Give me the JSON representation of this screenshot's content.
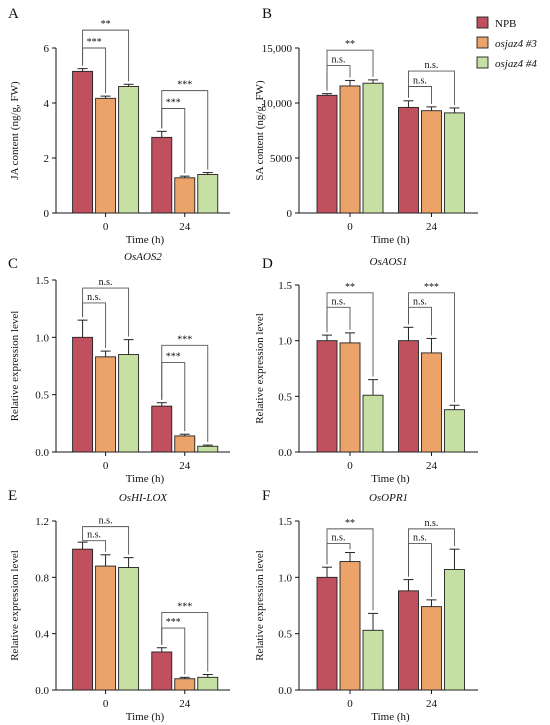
{
  "legend": [
    {
      "name": "NPB",
      "italic": false
    },
    {
      "name": "osjaz4 #3",
      "italic": true
    },
    {
      "name": "osjaz4 #4",
      "italic": true
    }
  ],
  "colors": {
    "NPB": "#c0505e",
    "osjaz4_3": "#eca36a",
    "osjaz4_4": "#c5e0a2",
    "stroke": "#222222"
  },
  "chart_data": [
    {
      "panel": "A",
      "type": "bar",
      "title": "",
      "xlabel": "Time (h)",
      "ylabel": "JA content (ng/g, FW)",
      "categories": [
        "0",
        "24"
      ],
      "ylim": [
        0,
        6
      ],
      "yticks": [
        0,
        2,
        4,
        6
      ],
      "ytick_labels": [
        "0",
        "2",
        "4",
        "6"
      ],
      "series": [
        {
          "name": "NPB",
          "values": [
            5.15,
            2.75
          ],
          "errors": [
            0.1,
            0.22
          ]
        },
        {
          "name": "osjaz4 #3",
          "values": [
            4.17,
            1.28
          ],
          "errors": [
            0.08,
            0.06
          ]
        },
        {
          "name": "osjaz4 #4",
          "values": [
            4.6,
            1.4
          ],
          "errors": [
            0.08,
            0.07
          ]
        }
      ],
      "brackets": [
        {
          "group": 0,
          "from": 0,
          "to": 2,
          "y": 6.65,
          "label": "**"
        },
        {
          "group": 0,
          "from": 0,
          "to": 1,
          "y": 6.0,
          "label": "***"
        },
        {
          "group": 1,
          "from": 0,
          "to": 2,
          "y": 4.45,
          "label": "***"
        },
        {
          "group": 1,
          "from": 0,
          "to": 1,
          "y": 3.8,
          "label": "***"
        }
      ]
    },
    {
      "panel": "B",
      "type": "bar",
      "title": "",
      "xlabel": "Time (h)",
      "ylabel": "SA content (ng/g, FW)",
      "categories": [
        "0",
        "24"
      ],
      "ylim": [
        0,
        15000
      ],
      "yticks": [
        0,
        5000,
        10000,
        15000
      ],
      "ytick_labels": [
        "0",
        "5000",
        "10,000",
        "15,000"
      ],
      "series": [
        {
          "name": "NPB",
          "values": [
            10700,
            9600
          ],
          "errors": [
            150,
            600
          ]
        },
        {
          "name": "osjaz4 #3",
          "values": [
            11550,
            9300
          ],
          "errors": [
            500,
            350
          ]
        },
        {
          "name": "osjaz4 #4",
          "values": [
            11800,
            9100
          ],
          "errors": [
            300,
            450
          ]
        }
      ],
      "brackets": [
        {
          "group": 0,
          "from": 0,
          "to": 2,
          "y": 14800,
          "label": "**"
        },
        {
          "group": 0,
          "from": 0,
          "to": 1,
          "y": 13400,
          "label": "n.s."
        },
        {
          "group": 1,
          "from": 0,
          "to": 2,
          "y": 12900,
          "label": "n.s."
        },
        {
          "group": 1,
          "from": 0,
          "to": 1,
          "y": 11500,
          "label": "n.s."
        }
      ]
    },
    {
      "panel": "C",
      "type": "bar",
      "title": "OsAOS2",
      "xlabel": "Time (h)",
      "ylabel": "Relative expression level",
      "categories": [
        "0",
        "24"
      ],
      "ylim": [
        0,
        1.5
      ],
      "yticks": [
        0,
        0.5,
        1.0,
        1.5
      ],
      "ytick_labels": [
        "0.0",
        "0.5",
        "1.0",
        "1.5"
      ],
      "series": [
        {
          "name": "NPB",
          "values": [
            1.0,
            0.4
          ],
          "errors": [
            0.15,
            0.03
          ]
        },
        {
          "name": "osjaz4 #3",
          "values": [
            0.83,
            0.14
          ],
          "errors": [
            0.05,
            0.015
          ]
        },
        {
          "name": "osjaz4 #4",
          "values": [
            0.85,
            0.05
          ],
          "errors": [
            0.13,
            0.01
          ]
        }
      ],
      "brackets": [
        {
          "group": 0,
          "from": 0,
          "to": 2,
          "y": 1.43,
          "label": "n.s."
        },
        {
          "group": 0,
          "from": 0,
          "to": 1,
          "y": 1.3,
          "label": "n.s."
        },
        {
          "group": 1,
          "from": 0,
          "to": 2,
          "y": 0.93,
          "label": "***"
        },
        {
          "group": 1,
          "from": 0,
          "to": 1,
          "y": 0.78,
          "label": "***"
        }
      ]
    },
    {
      "panel": "D",
      "type": "bar",
      "title": "OsAOS1",
      "xlabel": "Time (h)",
      "ylabel": "Relative expression level",
      "categories": [
        "0",
        "24"
      ],
      "ylim": [
        0,
        1.5
      ],
      "yticks": [
        0,
        0.5,
        1.0,
        1.5
      ],
      "ytick_labels": [
        "0.0",
        "0.5",
        "1.0",
        "1.5"
      ],
      "series": [
        {
          "name": "NPB",
          "values": [
            1.0,
            1.0
          ],
          "errors": [
            0.05,
            0.12
          ]
        },
        {
          "name": "osjaz4 #3",
          "values": [
            0.98,
            0.89
          ],
          "errors": [
            0.09,
            0.13
          ]
        },
        {
          "name": "osjaz4 #4",
          "values": [
            0.51,
            0.38
          ],
          "errors": [
            0.14,
            0.04
          ]
        }
      ],
      "brackets": [
        {
          "group": 0,
          "from": 0,
          "to": 2,
          "y": 1.43,
          "label": "**"
        },
        {
          "group": 0,
          "from": 0,
          "to": 1,
          "y": 1.3,
          "label": "n.s."
        },
        {
          "group": 1,
          "from": 0,
          "to": 2,
          "y": 1.43,
          "label": "***"
        },
        {
          "group": 1,
          "from": 0,
          "to": 1,
          "y": 1.3,
          "label": "n.s."
        }
      ]
    },
    {
      "panel": "E",
      "type": "bar",
      "title": "OsHI-LOX",
      "xlabel": "Time (h)",
      "ylabel": "Relative expression level",
      "categories": [
        "0",
        "24"
      ],
      "ylim": [
        0,
        1.2
      ],
      "yticks": [
        0,
        0.4,
        0.8,
        1.2
      ],
      "ytick_labels": [
        "0.0",
        "0.4",
        "0.8",
        "1.2"
      ],
      "series": [
        {
          "name": "NPB",
          "values": [
            1.0,
            0.27
          ],
          "errors": [
            0.05,
            0.03
          ]
        },
        {
          "name": "osjaz4 #3",
          "values": [
            0.88,
            0.08
          ],
          "errors": [
            0.08,
            0.01
          ]
        },
        {
          "name": "osjaz4 #4",
          "values": [
            0.87,
            0.09
          ],
          "errors": [
            0.07,
            0.02
          ]
        }
      ],
      "brackets": [
        {
          "group": 0,
          "from": 0,
          "to": 2,
          "y": 1.16,
          "label": "n.s."
        },
        {
          "group": 0,
          "from": 0,
          "to": 1,
          "y": 1.06,
          "label": "n.s."
        },
        {
          "group": 1,
          "from": 0,
          "to": 2,
          "y": 0.55,
          "label": "***"
        },
        {
          "group": 1,
          "from": 0,
          "to": 1,
          "y": 0.44,
          "label": "***"
        }
      ]
    },
    {
      "panel": "F",
      "type": "bar",
      "title": "OsOPR1",
      "xlabel": "Time (h)",
      "ylabel": "Relative expression level",
      "categories": [
        "0",
        "24"
      ],
      "ylim": [
        0,
        1.5
      ],
      "yticks": [
        0,
        0.5,
        1.0,
        1.5
      ],
      "ytick_labels": [
        "0.0",
        "0.5",
        "1.0",
        "1.5"
      ],
      "series": [
        {
          "name": "NPB",
          "values": [
            1.0,
            0.88
          ],
          "errors": [
            0.09,
            0.1
          ]
        },
        {
          "name": "osjaz4 #3",
          "values": [
            1.14,
            0.74
          ],
          "errors": [
            0.08,
            0.06
          ]
        },
        {
          "name": "osjaz4 #4",
          "values": [
            0.53,
            1.07
          ],
          "errors": [
            0.15,
            0.18
          ]
        }
      ],
      "brackets": [
        {
          "group": 0,
          "from": 0,
          "to": 2,
          "y": 1.43,
          "label": "**"
        },
        {
          "group": 0,
          "from": 0,
          "to": 1,
          "y": 1.3,
          "label": "n.s."
        },
        {
          "group": 1,
          "from": 0,
          "to": 2,
          "y": 1.43,
          "label": "n.s."
        },
        {
          "group": 1,
          "from": 0,
          "to": 1,
          "y": 1.3,
          "label": "n.s."
        }
      ]
    }
  ]
}
